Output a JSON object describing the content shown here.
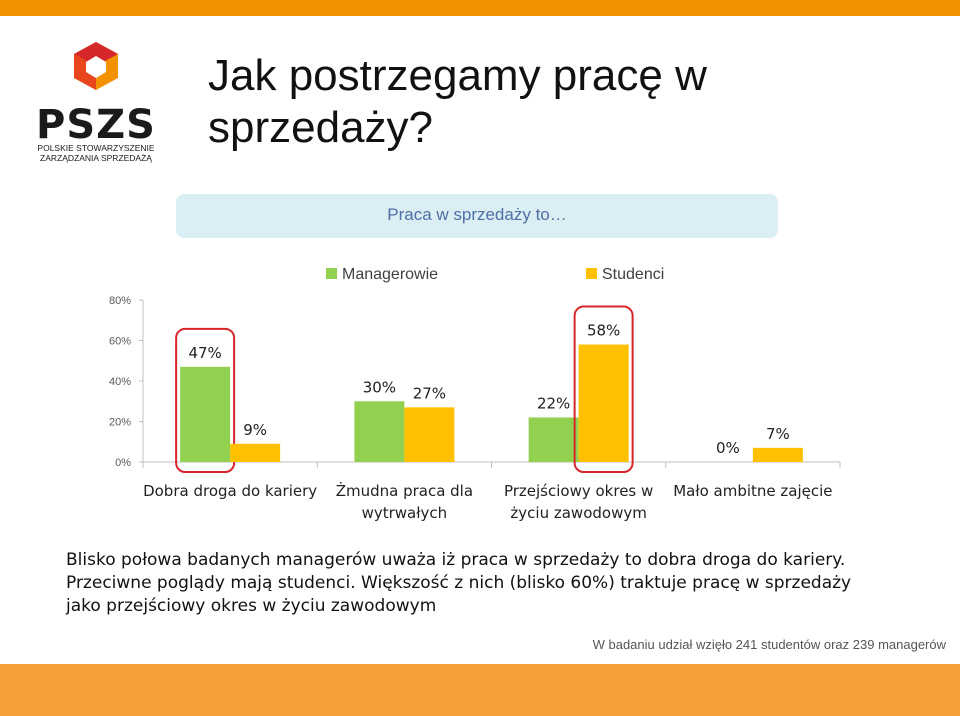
{
  "slide": {
    "title_line1": "Jak postrzegamy pracę w",
    "title_line2": "sprzedaży?",
    "subtitle": "Praca w sprzedaży to…",
    "body_lines": [
      "Blisko połowa badanych managerów uważa iż praca w sprzedaży to dobra droga do kariery.",
      "Przeciwne poglądy mają studenci. Większość z nich (blisko 60%) traktuje pracę w sprzedaży",
      "jako przejściowy okres w życiu zawodowym"
    ],
    "footnote": "W badaniu udział wzięło 241 studentów oraz 239 managerów"
  },
  "logo": {
    "text": "PSZS",
    "tagline_line1": "POLSKIE STOWARZYSZENIE",
    "tagline_line2": "ZARZĄDZANIA SPRZEDAŻĄ",
    "colors": {
      "red": "#d7262b",
      "orange": "#f39200",
      "dark": "#1a1a1a"
    }
  },
  "chart_data": {
    "type": "bar",
    "categories": [
      [
        "Dobra droga do kariery"
      ],
      [
        "Żmudna praca dla",
        "wytrwałych"
      ],
      [
        "Przejściowy okres w",
        "życiu zawodowym"
      ],
      [
        "Mało ambitne zajęcie"
      ]
    ],
    "series": [
      {
        "name": "Managerowie",
        "values": [
          47,
          30,
          22,
          0
        ],
        "labels": [
          "47%",
          "30%",
          "22%",
          "0%"
        ],
        "color": "#92d050"
      },
      {
        "name": "Studenci",
        "values": [
          9,
          27,
          58,
          7
        ],
        "labels": [
          "9%",
          "27%",
          "58%",
          "7%"
        ],
        "color": "#ffc000"
      }
    ],
    "yticks": [
      "0%",
      "20%",
      "40%",
      "60%",
      "80%"
    ],
    "ylim": [
      0,
      80
    ],
    "grid": false,
    "legend": "top",
    "highlighted_bars": [
      "Managerowie: Dobra droga do kariery",
      "Studenci: Przejściowy okres w życiu zawodowym"
    ],
    "highlight_color": "#d7262b"
  }
}
